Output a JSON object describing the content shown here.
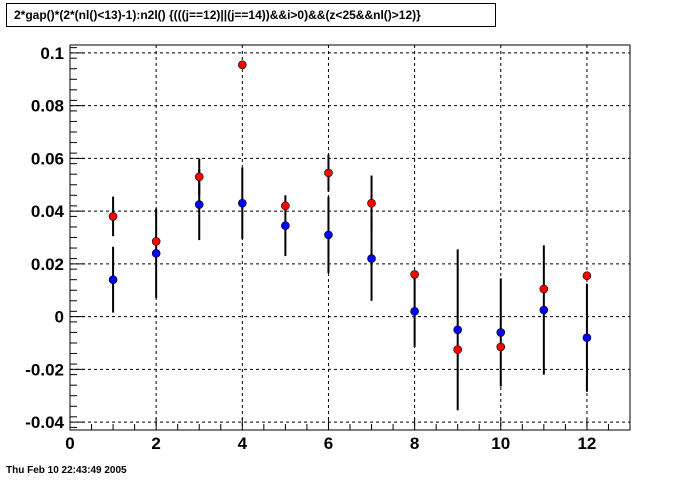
{
  "title": "2*gap()*(2*(nl()<13)-1):n2l() {(((j==12)||(j==14))&&i>0)&&(z<25&&nl()>12)}",
  "timestamp": "Thu Feb 10 22:43:49 2005",
  "chart_data": {
    "type": "scatter",
    "title": "2*gap()*(2*(nl()<13)-1):n2l() {(((j==12)||(j==14))&&i>0)&&(z<25&&nl()>12)}",
    "xlabel": "",
    "ylabel": "",
    "xlim": [
      0,
      13
    ],
    "ylim": [
      -0.043,
      0.103
    ],
    "grid": true,
    "xticks": [
      0,
      2,
      4,
      6,
      8,
      10,
      12
    ],
    "xtick_labels": [
      "0",
      "2",
      "4",
      "6",
      "8",
      "10",
      "12"
    ],
    "yticks": [
      -0.04,
      -0.02,
      0,
      0.02,
      0.04,
      0.06,
      0.08,
      0.1
    ],
    "ytick_labels": [
      "-0.04",
      "-0.02",
      "0",
      "0.02",
      "0.04",
      "0.06",
      "0.08",
      "0.1"
    ],
    "series": [
      {
        "color": "#0000ff",
        "x": [
          1,
          2,
          3,
          4,
          5,
          6,
          7,
          8,
          9,
          10,
          11,
          12
        ],
        "y": [
          0.014,
          0.024,
          0.0425,
          0.043,
          0.0345,
          0.031,
          0.022,
          0.002,
          -0.005,
          -0.006,
          0.0025,
          -0.008
        ],
        "yerr": [
          0.0125,
          0.017,
          0.0135,
          0.0135,
          0.0115,
          0.0145,
          0.016,
          0.0135,
          0.0305,
          0.0205,
          0.0245,
          0.0205
        ]
      },
      {
        "color": "#ff0000",
        "x": [
          1,
          2,
          3,
          4,
          5,
          6,
          7,
          8,
          9,
          10,
          11,
          12
        ],
        "y": [
          0.038,
          0.0285,
          0.053,
          0.0955,
          0.042,
          0.0545,
          0.043,
          0.016,
          -0.0125,
          -0.0115,
          0.0105,
          0.0155
        ],
        "yerr": [
          0.0075,
          0,
          0.007,
          0,
          0,
          0.007,
          0.0105,
          0,
          0,
          0,
          0,
          0
        ]
      }
    ]
  }
}
